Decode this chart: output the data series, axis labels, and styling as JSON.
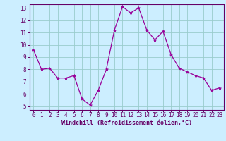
{
  "x": [
    0,
    1,
    2,
    3,
    4,
    5,
    6,
    7,
    8,
    9,
    10,
    11,
    12,
    13,
    14,
    15,
    16,
    17,
    18,
    19,
    20,
    21,
    22,
    23
  ],
  "y": [
    9.6,
    8.0,
    8.1,
    7.3,
    7.3,
    7.5,
    5.6,
    5.1,
    6.3,
    8.0,
    11.2,
    13.1,
    12.6,
    13.0,
    11.2,
    10.4,
    11.1,
    9.2,
    8.1,
    7.8,
    7.5,
    7.3,
    6.3,
    6.5
  ],
  "line_color": "#990099",
  "marker": "*",
  "marker_size": 3,
  "bg_color": "#cceeff",
  "grid_color": "#99cccc",
  "xlabel": "Windchill (Refroidissement éolien,°C)",
  "xlabel_color": "#660066",
  "tick_color": "#660066",
  "spine_color": "#660066",
  "ylim": [
    4.7,
    13.3
  ],
  "xlim": [
    -0.5,
    23.5
  ],
  "yticks": [
    5,
    6,
    7,
    8,
    9,
    10,
    11,
    12,
    13
  ],
  "xticks": [
    0,
    1,
    2,
    3,
    4,
    5,
    6,
    7,
    8,
    9,
    10,
    11,
    12,
    13,
    14,
    15,
    16,
    17,
    18,
    19,
    20,
    21,
    22,
    23
  ],
  "tick_fontsize": 5.5,
  "xlabel_fontsize": 6.0
}
